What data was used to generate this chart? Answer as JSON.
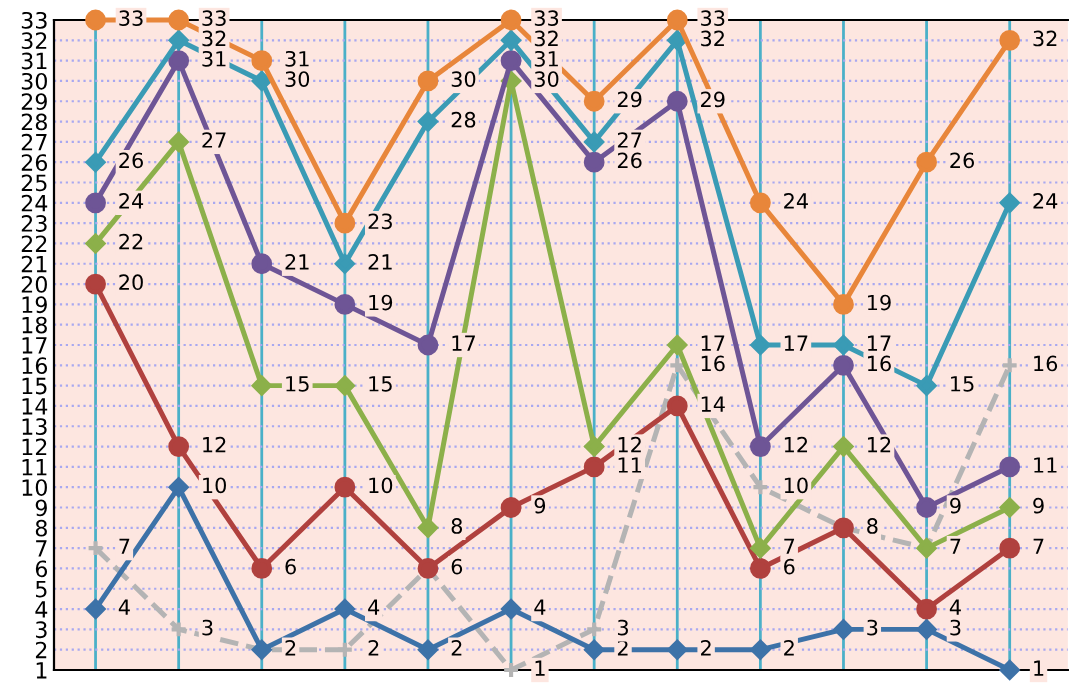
{
  "chart_data": {
    "type": "line",
    "categories": [
      null,
      null,
      null,
      null,
      null,
      null,
      null,
      null,
      null,
      null,
      null,
      null
    ],
    "series": [
      {
        "color": "#e8863a",
        "marker": "circle",
        "line_style": "solid",
        "values": [
          33,
          33,
          31,
          23,
          30,
          33,
          29,
          33,
          24,
          19,
          26,
          32
        ],
        "value_labels": [
          "33",
          "33",
          "31",
          "23",
          "30",
          "33",
          "29",
          "33",
          "24",
          "19",
          "26",
          "32"
        ]
      },
      {
        "color": "#3a9bb5",
        "marker": "diamond",
        "line_style": "solid",
        "values": [
          26,
          32,
          30,
          21,
          28,
          32,
          27,
          32,
          17,
          17,
          15,
          24
        ],
        "value_labels": [
          "26",
          "32",
          "30",
          "21",
          "28",
          "32",
          "27",
          "32",
          "17",
          "17",
          "15",
          "24"
        ]
      },
      {
        "color": "#6e5596",
        "marker": "circle",
        "line_style": "solid",
        "values": [
          24,
          31,
          21,
          19,
          17,
          31,
          26,
          29,
          12,
          16,
          9,
          11
        ],
        "value_labels": [
          "24",
          "31",
          "21",
          "19",
          "17",
          "31",
          "26",
          "29",
          "12",
          "16",
          "9",
          "11"
        ]
      },
      {
        "color": "#8cb04a",
        "marker": "diamond",
        "line_style": "solid",
        "values": [
          22,
          27,
          15,
          15,
          8,
          30,
          12,
          17,
          7,
          12,
          7,
          9
        ],
        "value_labels": [
          "22",
          "27",
          "15",
          "15",
          "8",
          "30",
          "12",
          "17",
          "7",
          "12",
          null,
          "9"
        ]
      },
      {
        "color": "#b0413e",
        "marker": "circle",
        "line_style": "solid",
        "values": [
          20,
          12,
          6,
          10,
          6,
          9,
          11,
          14,
          6,
          8,
          4,
          7
        ],
        "value_labels": [
          "20",
          "12",
          "6",
          "10",
          "6",
          "9",
          "11",
          "14",
          "6",
          "8",
          "4",
          "7"
        ]
      },
      {
        "color": "#3d72a8",
        "marker": "diamond",
        "line_style": "solid",
        "values": [
          4,
          10,
          2,
          4,
          2,
          4,
          2,
          2,
          2,
          3,
          3,
          1
        ],
        "value_labels": [
          "4",
          "10",
          "2",
          "4",
          "2",
          "4",
          "2",
          "2",
          "2",
          "3",
          "3",
          "1"
        ]
      },
      {
        "color": "#b4b4b4",
        "marker": "cross",
        "line_style": "dashed",
        "values": [
          7,
          3,
          2,
          2,
          6,
          1,
          3,
          16,
          10,
          8,
          7,
          16
        ],
        "value_labels": [
          "7",
          "3",
          null,
          "2",
          null,
          "1",
          "3",
          "16",
          "10",
          null,
          "7",
          "16"
        ]
      }
    ],
    "ylim": [
      1,
      33
    ],
    "yticks": [
      1,
      2,
      3,
      4,
      5,
      6,
      7,
      8,
      9,
      10,
      11,
      12,
      13,
      14,
      15,
      16,
      17,
      18,
      19,
      20,
      21,
      22,
      23,
      24,
      25,
      26,
      27,
      28,
      29,
      30,
      31,
      32,
      33
    ],
    "grid": true,
    "legend": false
  }
}
